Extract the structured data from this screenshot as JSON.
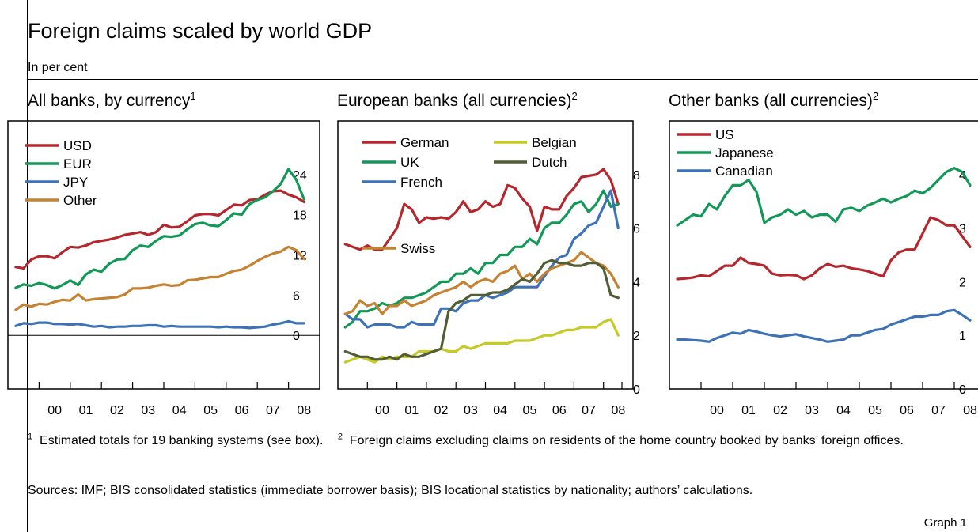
{
  "title": "Foreign claims scaled by world GDP",
  "subtitle": "In per cent",
  "footnotes": {
    "fn1_mark": "1",
    "fn1": "Estimated totals for 19 banking systems (see box).",
    "fn2_mark": "2",
    "fn2": "Foreign claims excluding claims on residents of the home country booked by banks’ foreign offices."
  },
  "sources": "Sources: IMF; BIS consolidated statistics (immediate borrower basis); BIS locational statistics by nationality; authors’ calculations.",
  "graph_label": "Graph 1",
  "chart_data": [
    {
      "type": "line",
      "title": "All banks, by currency",
      "title_note": "1",
      "x_tick_labels": [
        "00",
        "01",
        "02",
        "03",
        "04",
        "05",
        "06",
        "07",
        "08"
      ],
      "xlim": [
        1999.0,
        2009.0
      ],
      "ylim": [
        -8,
        32
      ],
      "y_ticks": [
        0,
        6,
        12,
        18,
        24
      ],
      "zero_line": true,
      "legend": "top-left",
      "x": [
        1999.25,
        1999.5,
        1999.75,
        2000.0,
        2000.25,
        2000.5,
        2000.75,
        2001.0,
        2001.25,
        2001.5,
        2001.75,
        2002.0,
        2002.25,
        2002.5,
        2002.75,
        2003.0,
        2003.25,
        2003.5,
        2003.75,
        2004.0,
        2004.25,
        2004.5,
        2004.75,
        2005.0,
        2005.25,
        2005.5,
        2005.75,
        2006.0,
        2006.25,
        2006.5,
        2006.75,
        2007.0,
        2007.25,
        2007.5,
        2007.75,
        2008.0,
        2008.25,
        2008.5
      ],
      "series": [
        {
          "name": "USD",
          "color": "#b5272d",
          "values": [
            10.2,
            10.0,
            11.3,
            11.8,
            11.8,
            11.5,
            12.4,
            13.2,
            13.1,
            13.4,
            13.9,
            14.1,
            14.3,
            14.6,
            15.0,
            15.2,
            15.4,
            15.0,
            15.4,
            16.5,
            16.1,
            16.2,
            17.0,
            17.9,
            18.1,
            18.1,
            17.9,
            18.7,
            19.5,
            19.4,
            20.2,
            20.3,
            21.0,
            21.5,
            21.6,
            21.0,
            20.6,
            19.9
          ]
        },
        {
          "name": "EUR",
          "color": "#129958",
          "values": [
            7.1,
            7.6,
            7.4,
            7.8,
            7.5,
            7.0,
            7.5,
            8.2,
            7.5,
            9.1,
            9.8,
            9.5,
            10.7,
            11.3,
            11.4,
            12.7,
            13.4,
            13.2,
            14.1,
            14.8,
            14.7,
            14.9,
            15.8,
            16.6,
            16.8,
            16.4,
            16.3,
            17.2,
            18.2,
            18.0,
            19.6,
            20.2,
            20.6,
            21.5,
            22.6,
            24.8,
            23.2,
            20.3
          ]
        },
        {
          "name": "JPY",
          "color": "#3d72b6",
          "values": [
            1.4,
            1.8,
            1.7,
            1.9,
            1.9,
            1.7,
            1.7,
            1.6,
            1.7,
            1.5,
            1.3,
            1.4,
            1.2,
            1.3,
            1.3,
            1.4,
            1.4,
            1.5,
            1.5,
            1.3,
            1.4,
            1.3,
            1.3,
            1.3,
            1.3,
            1.3,
            1.2,
            1.3,
            1.2,
            1.2,
            1.1,
            1.2,
            1.3,
            1.6,
            1.8,
            2.1,
            1.8,
            1.8
          ]
        },
        {
          "name": "Other",
          "color": "#c58231",
          "values": [
            3.8,
            4.6,
            4.3,
            4.7,
            4.6,
            5.0,
            5.3,
            5.2,
            6.1,
            5.2,
            5.4,
            5.5,
            5.6,
            5.7,
            6.1,
            7.0,
            7.0,
            7.1,
            7.4,
            7.6,
            7.4,
            7.5,
            8.2,
            8.3,
            8.5,
            8.7,
            8.7,
            9.2,
            9.6,
            9.8,
            10.4,
            11.1,
            11.7,
            12.2,
            12.5,
            13.2,
            12.7,
            11.4
          ]
        }
      ]
    },
    {
      "type": "line",
      "title": "European banks (all currencies)",
      "title_note": "2",
      "x_tick_labels": [
        "00",
        "01",
        "02",
        "03",
        "04",
        "05",
        "06",
        "07",
        "08"
      ],
      "xlim": [
        1999.0,
        2009.0
      ],
      "ylim": [
        0,
        10
      ],
      "y_ticks": [
        0,
        2,
        4,
        6,
        8
      ],
      "legend": "top",
      "x": [
        1999.25,
        1999.5,
        1999.75,
        2000.0,
        2000.25,
        2000.5,
        2000.75,
        2001.0,
        2001.25,
        2001.5,
        2001.75,
        2002.0,
        2002.25,
        2002.5,
        2002.75,
        2003.0,
        2003.25,
        2003.5,
        2003.75,
        2004.0,
        2004.25,
        2004.5,
        2004.75,
        2005.0,
        2005.25,
        2005.5,
        2005.75,
        2006.0,
        2006.25,
        2006.5,
        2006.75,
        2007.0,
        2007.25,
        2007.5,
        2007.75,
        2008.0,
        2008.25,
        2008.5
      ],
      "series": [
        {
          "name": "German",
          "color": "#b5272d",
          "values": [
            5.4,
            5.3,
            5.2,
            5.35,
            5.2,
            5.2,
            5.6,
            6.0,
            6.9,
            6.7,
            6.2,
            6.4,
            6.35,
            6.4,
            6.35,
            6.6,
            7.0,
            6.6,
            6.7,
            7.0,
            6.8,
            6.9,
            7.6,
            7.5,
            7.1,
            6.8,
            5.9,
            6.8,
            6.7,
            6.7,
            7.2,
            7.5,
            7.9,
            7.95,
            8.0,
            8.2,
            7.8,
            6.9
          ]
        },
        {
          "name": "UK",
          "color": "#129958",
          "values": [
            2.3,
            2.5,
            2.9,
            2.9,
            3.0,
            3.2,
            3.1,
            3.2,
            3.4,
            3.4,
            3.5,
            3.6,
            3.8,
            4.0,
            4.0,
            4.3,
            4.3,
            4.5,
            4.3,
            4.7,
            4.7,
            5.0,
            5.0,
            5.3,
            5.3,
            5.6,
            5.4,
            6.0,
            6.2,
            6.2,
            6.5,
            6.9,
            7.0,
            6.6,
            6.9,
            7.4,
            6.8,
            6.9
          ]
        },
        {
          "name": "French",
          "color": "#3d72b6",
          "values": [
            2.8,
            2.6,
            2.6,
            2.3,
            2.4,
            2.4,
            2.4,
            2.3,
            2.3,
            2.5,
            2.4,
            2.4,
            2.4,
            3.0,
            3.0,
            2.9,
            3.2,
            3.3,
            3.3,
            3.5,
            3.4,
            3.5,
            3.6,
            3.8,
            3.8,
            3.8,
            3.8,
            4.2,
            4.6,
            4.9,
            5.0,
            5.6,
            5.8,
            6.1,
            6.2,
            6.8,
            7.4,
            6.0
          ]
        },
        {
          "name": "Swiss",
          "color": "#c58231",
          "values": [
            2.8,
            2.9,
            3.3,
            3.1,
            3.2,
            2.8,
            3.1,
            3.1,
            3.3,
            3.1,
            3.2,
            3.3,
            3.5,
            3.6,
            3.7,
            3.8,
            4.0,
            3.8,
            4.0,
            4.1,
            4.0,
            4.3,
            4.4,
            4.6,
            4.1,
            4.3,
            4.0,
            4.3,
            4.5,
            4.6,
            4.7,
            4.8,
            5.1,
            4.9,
            4.7,
            4.6,
            4.3,
            3.8
          ]
        },
        {
          "name": "Belgian",
          "color": "#c5cb24",
          "values": [
            1.0,
            1.1,
            1.2,
            1.1,
            1.0,
            1.2,
            1.1,
            1.2,
            1.2,
            1.2,
            1.4,
            1.4,
            1.4,
            1.5,
            1.4,
            1.4,
            1.6,
            1.5,
            1.6,
            1.7,
            1.7,
            1.7,
            1.7,
            1.8,
            1.8,
            1.8,
            1.9,
            2.0,
            2.0,
            2.1,
            2.2,
            2.2,
            2.3,
            2.3,
            2.3,
            2.5,
            2.6,
            2.0
          ]
        },
        {
          "name": "Dutch",
          "color": "#515d34",
          "values": [
            1.4,
            1.3,
            1.2,
            1.2,
            1.1,
            1.1,
            1.2,
            1.1,
            1.3,
            1.2,
            1.2,
            1.3,
            1.4,
            1.5,
            2.9,
            3.2,
            3.3,
            3.5,
            3.5,
            3.5,
            3.6,
            3.6,
            3.7,
            3.9,
            4.1,
            4.0,
            4.3,
            4.7,
            4.8,
            4.7,
            4.7,
            4.6,
            4.6,
            4.7,
            4.7,
            4.5,
            3.5,
            3.4
          ]
        }
      ]
    },
    {
      "type": "line",
      "title": "Other banks (all currencies)",
      "title_note": "2",
      "x_tick_labels": [
        "00",
        "01",
        "02",
        "03",
        "04",
        "05",
        "06",
        "07",
        "08"
      ],
      "xlim": [
        1999.0,
        2009.0
      ],
      "ylim": [
        0,
        5
      ],
      "y_ticks": [
        0,
        1,
        2,
        3,
        4
      ],
      "legend": "top-left",
      "x": [
        1999.25,
        1999.5,
        1999.75,
        2000.0,
        2000.25,
        2000.5,
        2000.75,
        2001.0,
        2001.25,
        2001.5,
        2001.75,
        2002.0,
        2002.25,
        2002.5,
        2002.75,
        2003.0,
        2003.25,
        2003.5,
        2003.75,
        2004.0,
        2004.25,
        2004.5,
        2004.75,
        2005.0,
        2005.25,
        2005.5,
        2005.75,
        2006.0,
        2006.25,
        2006.5,
        2006.75,
        2007.0,
        2007.25,
        2007.5,
        2007.75,
        2008.0,
        2008.25,
        2008.5
      ],
      "series": [
        {
          "name": "US",
          "color": "#b5272d",
          "values": [
            2.05,
            2.06,
            2.08,
            2.12,
            2.1,
            2.2,
            2.3,
            2.3,
            2.45,
            2.35,
            2.33,
            2.3,
            2.15,
            2.12,
            2.13,
            2.12,
            2.05,
            2.12,
            2.25,
            2.33,
            2.28,
            2.3,
            2.25,
            2.23,
            2.2,
            2.15,
            2.1,
            2.4,
            2.55,
            2.6,
            2.6,
            2.9,
            3.2,
            3.15,
            3.05,
            3.05,
            2.85,
            2.65
          ]
        },
        {
          "name": "Japanese",
          "color": "#129958",
          "values": [
            3.05,
            3.15,
            3.25,
            3.22,
            3.45,
            3.35,
            3.6,
            3.8,
            3.8,
            3.9,
            3.68,
            3.1,
            3.2,
            3.25,
            3.35,
            3.25,
            3.32,
            3.2,
            3.25,
            3.25,
            3.12,
            3.35,
            3.38,
            3.32,
            3.42,
            3.48,
            3.55,
            3.48,
            3.55,
            3.6,
            3.7,
            3.65,
            3.75,
            3.9,
            4.05,
            4.12,
            4.05,
            3.8
          ]
        },
        {
          "name": "Canadian",
          "color": "#3d72b6",
          "values": [
            0.92,
            0.92,
            0.91,
            0.9,
            0.88,
            0.95,
            1.0,
            1.05,
            1.03,
            1.1,
            1.07,
            1.03,
            1.0,
            0.98,
            1.0,
            1.02,
            0.98,
            0.95,
            0.92,
            0.88,
            0.9,
            0.92,
            1.0,
            1.0,
            1.05,
            1.1,
            1.12,
            1.2,
            1.25,
            1.3,
            1.35,
            1.35,
            1.38,
            1.38,
            1.45,
            1.47,
            1.38,
            1.28
          ]
        }
      ]
    }
  ]
}
